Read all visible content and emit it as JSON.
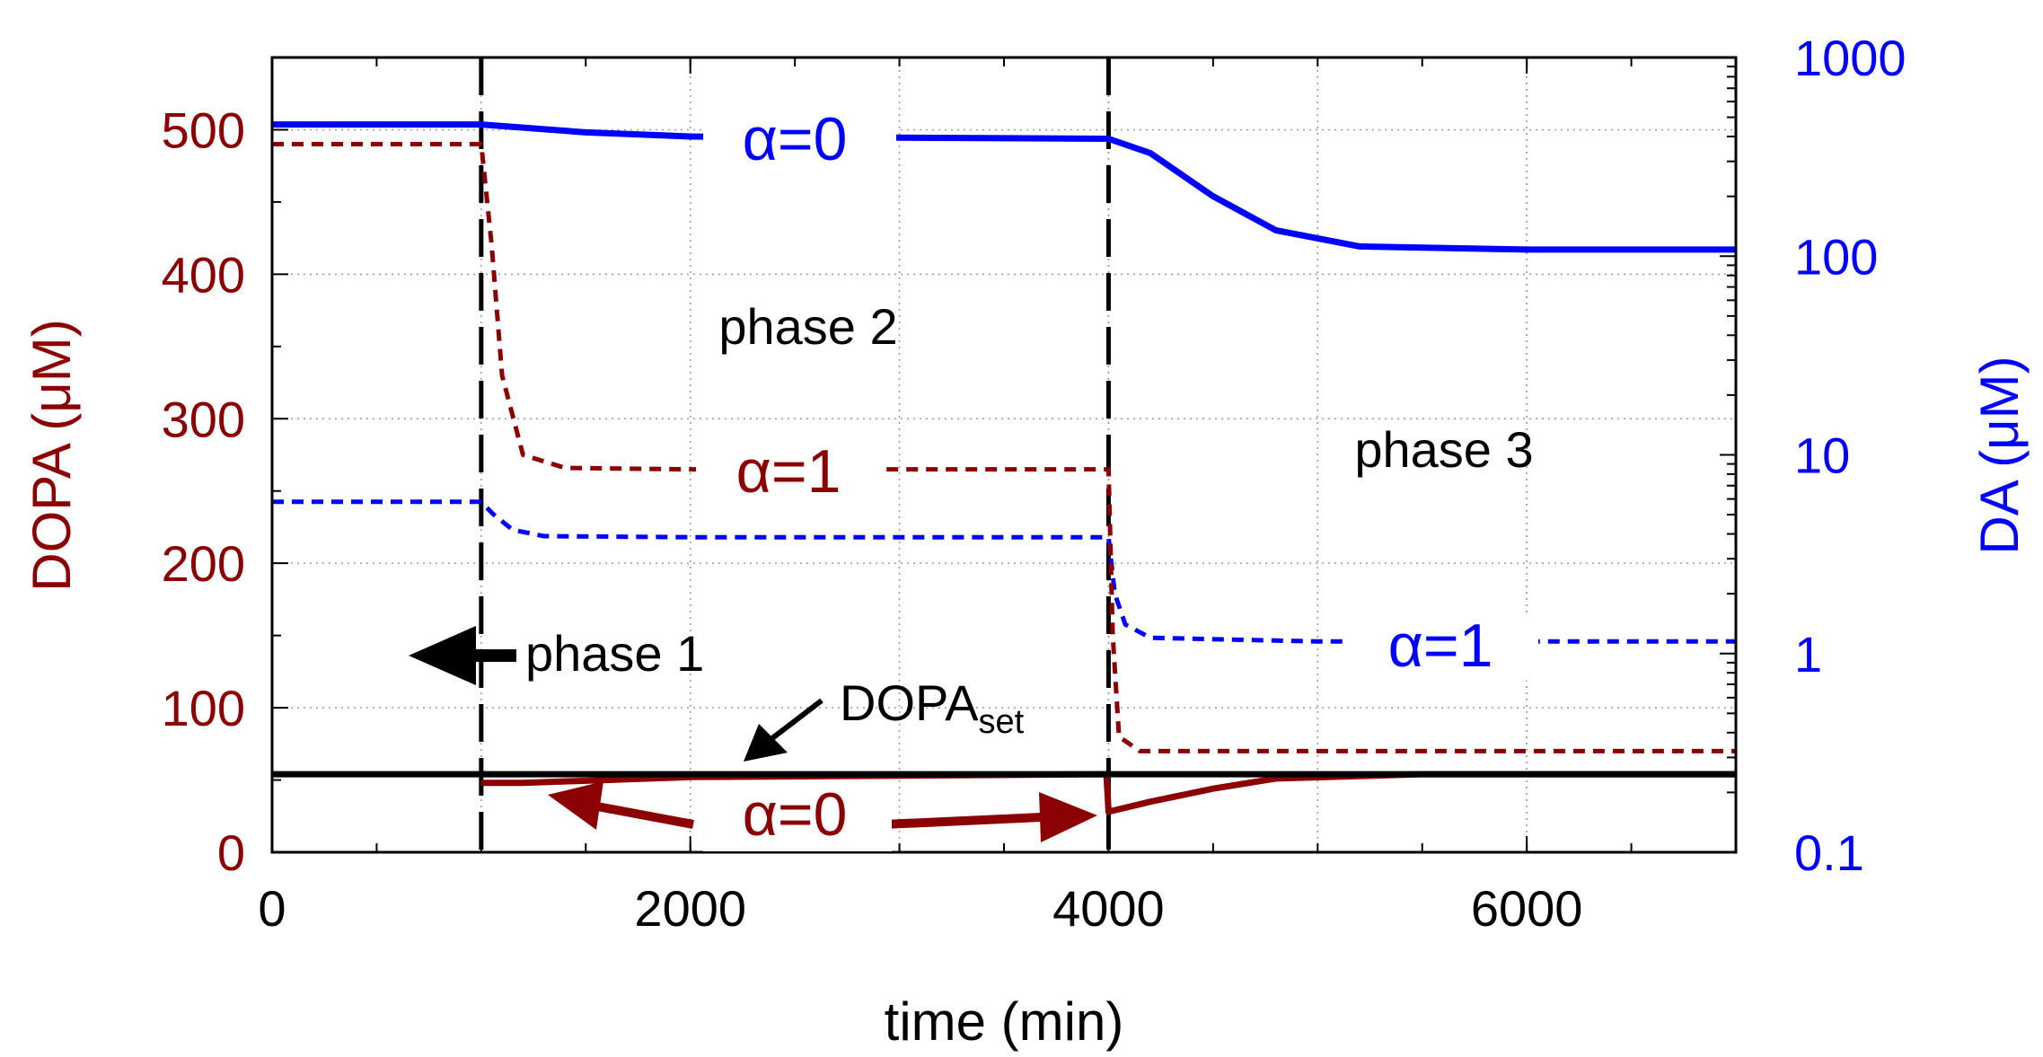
{
  "chart_data": {
    "type": "line",
    "xlabel": "time (min)",
    "ylabel_left": "DOPA (μM)",
    "ylabel_right": "DA (μM)",
    "xlim": [
      0,
      7000
    ],
    "ylim_left": [
      0,
      550
    ],
    "ylim_right": [
      0.1,
      1000
    ],
    "right_axis_scale": "log",
    "grid": true,
    "x_ticks": [
      "0",
      "2000",
      "4000",
      "6000"
    ],
    "y_left_ticks": [
      "0",
      "100",
      "200",
      "300",
      "400",
      "500"
    ],
    "y_right_ticks": [
      "0.1",
      "1",
      "10",
      "100",
      "1000"
    ],
    "colors": {
      "dopa": "#8b0000",
      "da": "#0000ff",
      "setpoint": "#000000",
      "phase_line": "#000000"
    },
    "phase_boundaries": [
      1000,
      4000
    ],
    "series": [
      {
        "axis": "right",
        "color": "#0000ff",
        "style": "solid",
        "points": [
          [
            0,
            460
          ],
          [
            1000,
            460
          ],
          [
            1500,
            420
          ],
          [
            2000,
            400
          ],
          [
            2500,
            395
          ],
          [
            3000,
            395
          ],
          [
            4000,
            390
          ],
          [
            4200,
            330
          ],
          [
            4500,
            200
          ],
          [
            4800,
            135
          ],
          [
            5200,
            112
          ],
          [
            6000,
            108
          ],
          [
            7000,
            108
          ]
        ]
      },
      {
        "axis": "right",
        "color": "#0000ff",
        "style": "dotted",
        "points": [
          [
            0,
            5.8
          ],
          [
            1000,
            5.8
          ],
          [
            1060,
            5.0
          ],
          [
            1150,
            4.2
          ],
          [
            1300,
            3.9
          ],
          [
            2000,
            3.85
          ],
          [
            4000,
            3.85
          ],
          [
            4030,
            2.0
          ],
          [
            4080,
            1.4
          ],
          [
            4200,
            1.2
          ],
          [
            5000,
            1.15
          ],
          [
            7000,
            1.15
          ]
        ]
      },
      {
        "axis": "left",
        "color": "#8b0000",
        "style": "dotted",
        "points": [
          [
            0,
            490
          ],
          [
            1000,
            490
          ],
          [
            1050,
            420
          ],
          [
            1100,
            330
          ],
          [
            1200,
            275
          ],
          [
            1400,
            266
          ],
          [
            2000,
            265
          ],
          [
            4000,
            265
          ],
          [
            4020,
            150
          ],
          [
            4050,
            80
          ],
          [
            4150,
            70
          ],
          [
            7000,
            70
          ]
        ]
      },
      {
        "axis": "left",
        "color": "#8b0000",
        "style": "solid",
        "points": [
          [
            1000,
            48
          ],
          [
            1200,
            48
          ],
          [
            2000,
            52
          ],
          [
            3000,
            53
          ],
          [
            3990,
            54
          ],
          [
            4000,
            28
          ],
          [
            4200,
            35
          ],
          [
            4500,
            44
          ],
          [
            4800,
            51
          ],
          [
            5500,
            54
          ],
          [
            7000,
            54
          ]
        ]
      },
      {
        "axis": "left",
        "color": "#000000",
        "style": "solid",
        "points": [
          [
            0,
            54
          ],
          [
            7000,
            54
          ]
        ]
      }
    ],
    "annotations": {
      "phase1": "phase 1",
      "phase2": "phase 2",
      "phase3": "phase 3",
      "alpha0": "α=0",
      "alpha1": "α=1",
      "dopaset_main": "DOPA",
      "dopaset_sub": "set"
    }
  }
}
